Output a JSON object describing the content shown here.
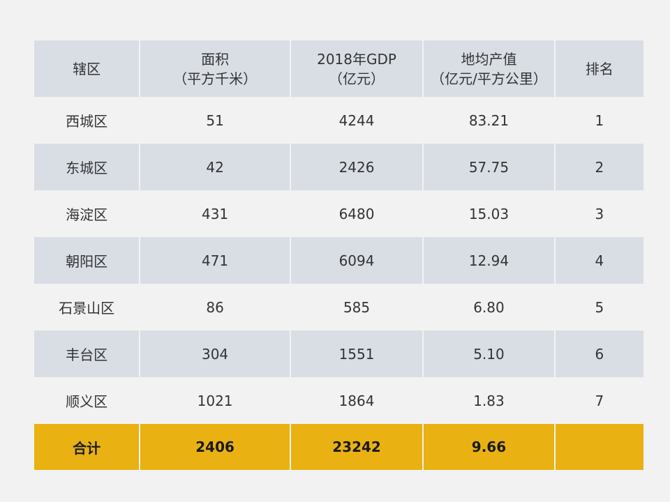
{
  "table": {
    "headers": [
      {
        "line1": "辖区",
        "line2": ""
      },
      {
        "line1": "面积",
        "line2": "（平方千米）"
      },
      {
        "line1": "2018年GDP",
        "line2": "（亿元）"
      },
      {
        "line1": "地均产值",
        "line2": "（亿元/平方公里）"
      },
      {
        "line1": "排名",
        "line2": ""
      }
    ],
    "rows": [
      {
        "district": "西城区",
        "area": "51",
        "gdp": "4244",
        "density": "83.21",
        "rank": "1"
      },
      {
        "district": "东城区",
        "area": "42",
        "gdp": "2426",
        "density": "57.75",
        "rank": "2"
      },
      {
        "district": "海淀区",
        "area": "431",
        "gdp": "6480",
        "density": "15.03",
        "rank": "3"
      },
      {
        "district": "朝阳区",
        "area": "471",
        "gdp": "6094",
        "density": "12.94",
        "rank": "4"
      },
      {
        "district": "石景山区",
        "area": "86",
        "gdp": "585",
        "density": "6.80",
        "rank": "5"
      },
      {
        "district": "丰台区",
        "area": "304",
        "gdp": "1551",
        "density": "5.10",
        "rank": "6"
      },
      {
        "district": "顺义区",
        "area": "1021",
        "gdp": "1864",
        "density": "1.83",
        "rank": "7"
      }
    ],
    "total": {
      "district": "合计",
      "area": "2406",
      "gdp": "23242",
      "density": "9.66",
      "rank": ""
    }
  },
  "colors": {
    "band": "#d9dee5",
    "background": "#f2f2f2",
    "total_row": "#e9b212"
  }
}
